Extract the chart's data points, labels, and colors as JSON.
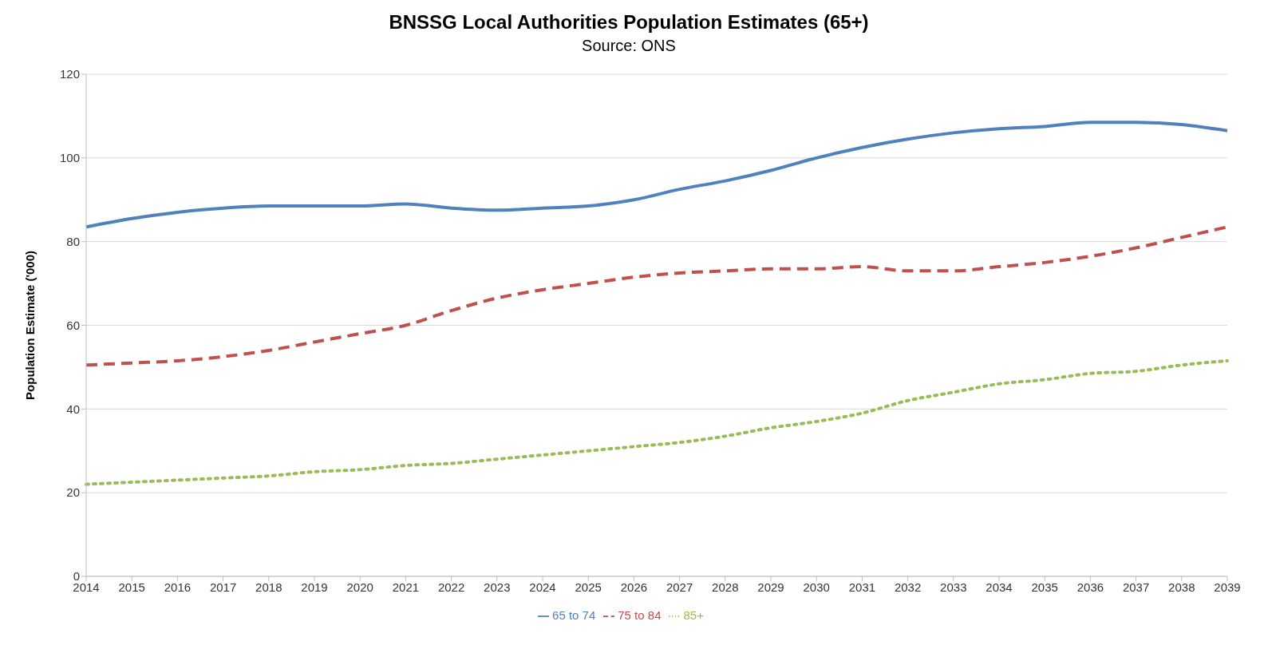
{
  "chart_data": {
    "type": "line",
    "title": "BNSSG Local Authorities Population Estimates (65+)",
    "subtitle": "Source: ONS",
    "ylabel": "Population Estimate ('000)",
    "categories": [
      "2014",
      "2015",
      "2016",
      "2017",
      "2018",
      "2019",
      "2020",
      "2021",
      "2022",
      "2023",
      "2024",
      "2025",
      "2026",
      "2027",
      "2028",
      "2029",
      "2030",
      "2031",
      "2032",
      "2033",
      "2034",
      "2035",
      "2036",
      "2037",
      "2038",
      "2039"
    ],
    "series": [
      {
        "name": "65 to 74",
        "color": "#4f81bd",
        "line_style": "solid",
        "values": [
          83.5,
          85.5,
          87,
          88,
          88.5,
          88.5,
          88.5,
          89,
          88,
          87.5,
          88,
          88.5,
          90,
          92.5,
          94.5,
          97,
          100,
          102.5,
          104.5,
          106,
          107,
          107.5,
          108.5,
          108.5,
          108,
          106.5
        ]
      },
      {
        "name": "75 to 84",
        "color": "#c0504d",
        "line_style": "dashed",
        "values": [
          50.5,
          51,
          51.5,
          52.5,
          54,
          56,
          58,
          60,
          63.5,
          66.5,
          68.5,
          70,
          71.5,
          72.5,
          73,
          73.5,
          73.5,
          74,
          73,
          73,
          74,
          75,
          76.5,
          78.5,
          81,
          83.5
        ]
      },
      {
        "name": "85+",
        "color": "#9bbb59",
        "line_style": "dotted",
        "values": [
          22,
          22.5,
          23,
          23.5,
          24,
          25,
          25.5,
          26.5,
          27,
          28,
          29,
          30,
          31,
          32,
          33.5,
          35.5,
          37,
          39,
          42,
          44,
          46,
          47,
          48.5,
          49,
          50.5,
          51.5
        ]
      }
    ],
    "ylim": [
      0,
      120
    ],
    "yticks": [
      0,
      20,
      40,
      60,
      80,
      100,
      120
    ],
    "grid": "y",
    "legend": "bottom",
    "marker": "none"
  }
}
